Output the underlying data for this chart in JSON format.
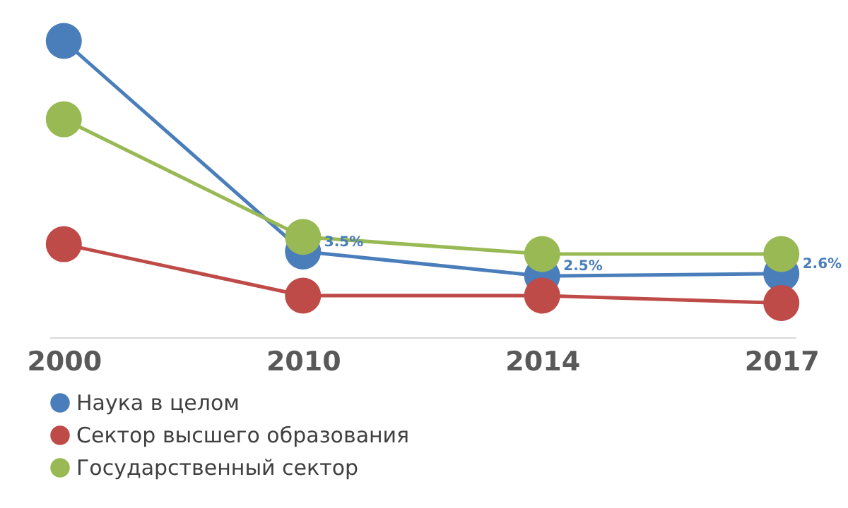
{
  "chart_data": {
    "type": "line",
    "categories": [
      "2000",
      "2010",
      "2014",
      "2017"
    ],
    "marker": "circle",
    "legend": "bottom",
    "grid": false,
    "series": [
      {
        "name": "Наука в целом",
        "color": "#4a7ebb",
        "values": [
          12.1,
          3.5,
          2.5,
          2.6
        ],
        "value_labels": [
          null,
          "3.5%",
          "2.5%",
          "2.6%"
        ]
      },
      {
        "name": "Сектор высшего образования",
        "color": "#be4b48",
        "values": [
          3.8,
          1.7,
          1.7,
          1.4
        ]
      },
      {
        "name": "Государственный сектор",
        "color": "#98b954",
        "values": [
          8.9,
          4.1,
          3.4,
          3.4
        ]
      }
    ]
  }
}
